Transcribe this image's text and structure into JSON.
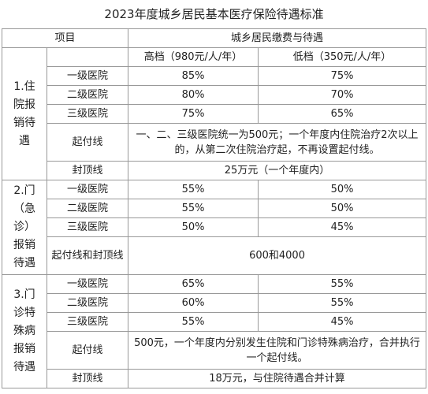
{
  "title": "2023年度城乡居民基本医疗保险待遇标准",
  "header": [
    "项目",
    "城乡居民缴费与待遇"
  ],
  "tiers": [
    "高档（980元/人/年）",
    "低档（350元/人/年）"
  ],
  "sections": [
    {
      "name": "1.住院报销待遇",
      "rows": [
        {
          "label": "一级医院",
          "cells": [
            "85%",
            "75%"
          ]
        },
        {
          "label": "二级医院",
          "cells": [
            "80%",
            "70%"
          ]
        },
        {
          "label": "三级医院",
          "cells": [
            "75%",
            "65%"
          ]
        },
        {
          "label": "起付线",
          "merged": "一、二、三级医院统一为500元；一个年度内住院治疗2次以上的，从第二次住院治疗起，不再设置起付线。"
        },
        {
          "label": "封顶线",
          "merged": "25万元（一个年度内）"
        }
      ]
    },
    {
      "name": "2.门（急诊）报销待遇",
      "rows": [
        {
          "label": "一级医院",
          "cells": [
            "55%",
            "50%"
          ]
        },
        {
          "label": "二级医院",
          "cells": [
            "55%",
            "50%"
          ]
        },
        {
          "label": "三级医院",
          "cells": [
            "50%",
            "45%"
          ]
        },
        {
          "label": "起付线和封顶线",
          "merged": "600和4000"
        }
      ]
    },
    {
      "name": "3.门诊特殊病报销待遇",
      "rows": [
        {
          "label": "一级医院",
          "cells": [
            "65%",
            "55%"
          ]
        },
        {
          "label": "二级医院",
          "cells": [
            "60%",
            "55%"
          ]
        },
        {
          "label": "三级医院",
          "cells": [
            "55%",
            "45%"
          ]
        },
        {
          "label": "起付线",
          "merged": "500元，一个年度内分别发生住院和门诊特殊病治疗，合并执行一个起付线。"
        },
        {
          "label": "封顶线",
          "merged": "18万元，与住院待遇合并计算"
        }
      ]
    }
  ]
}
